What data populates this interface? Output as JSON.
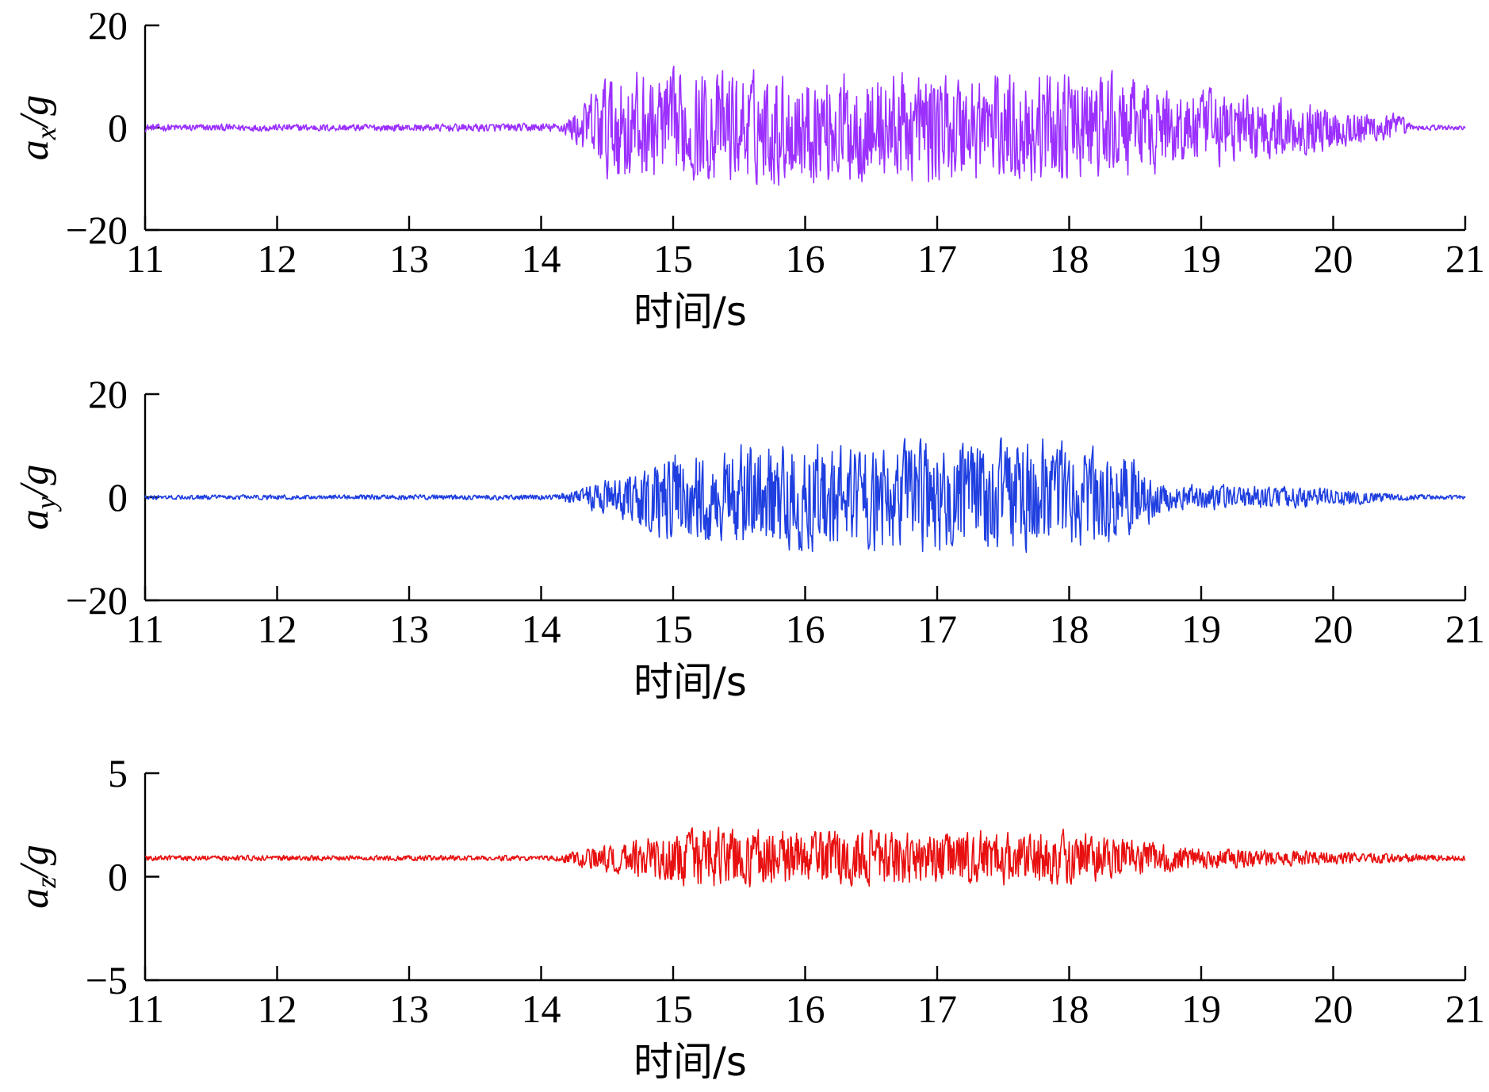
{
  "chart_data": [
    {
      "type": "line",
      "panel": "ax",
      "ylabel_main": "a",
      "ylabel_sub": "x",
      "ylabel_tail": "/g",
      "xlabel": "时间/s",
      "xlim": [
        11,
        21
      ],
      "ylim": [
        -20,
        20
      ],
      "xticks": [
        "11",
        "12",
        "13",
        "14",
        "15",
        "16",
        "17",
        "18",
        "19",
        "20",
        "21"
      ],
      "yticks": [
        "20",
        "0",
        "−20"
      ],
      "ytick_values": [
        20,
        0,
        -20
      ],
      "color": "#9b30ff",
      "series": [
        {
          "baseline": 0,
          "envelope": [
            [
              11,
              0.8
            ],
            [
              13,
              0.8
            ],
            [
              14.15,
              1.0
            ],
            [
              14.3,
              5
            ],
            [
              14.5,
              12.5
            ],
            [
              18.2,
              12.5
            ],
            [
              18.8,
              9
            ],
            [
              19.3,
              8
            ],
            [
              20,
              5
            ],
            [
              20.5,
              3
            ],
            [
              20.6,
              0.6
            ],
            [
              21,
              0.6
            ]
          ],
          "clip": [
            -12.5,
            12.5
          ],
          "sample_dt": 0.005
        }
      ]
    },
    {
      "type": "line",
      "panel": "ay",
      "ylabel_main": "a",
      "ylabel_sub": "y",
      "ylabel_tail": "/g",
      "xlabel": "时间/s",
      "xlim": [
        11,
        21
      ],
      "ylim": [
        -20,
        20
      ],
      "xticks": [
        "11",
        "12",
        "13",
        "14",
        "15",
        "16",
        "17",
        "18",
        "19",
        "20",
        "21"
      ],
      "yticks": [
        "20",
        "0",
        "−20"
      ],
      "ytick_values": [
        20,
        0,
        -20
      ],
      "color": "#1f3fe0",
      "series": [
        {
          "baseline": 0,
          "envelope": [
            [
              11,
              0.5
            ],
            [
              14.1,
              0.6
            ],
            [
              14.3,
              2
            ],
            [
              14.6,
              5
            ],
            [
              15,
              10
            ],
            [
              15.5,
              12
            ],
            [
              17.8,
              12.5
            ],
            [
              18.5,
              9
            ],
            [
              18.7,
              3
            ],
            [
              19.5,
              2.5
            ],
            [
              20,
              2
            ],
            [
              20.5,
              0.8
            ],
            [
              21,
              0.4
            ]
          ],
          "clip": [
            -12.5,
            12.5
          ],
          "sample_dt": 0.005
        }
      ]
    },
    {
      "type": "line",
      "panel": "az",
      "ylabel_main": "a",
      "ylabel_sub": "z",
      "ylabel_tail": "/g",
      "xlabel": "时间/s",
      "xlim": [
        11,
        21
      ],
      "ylim": [
        -5,
        5
      ],
      "xticks": [
        "11",
        "12",
        "13",
        "14",
        "15",
        "16",
        "17",
        "18",
        "19",
        "20",
        "21"
      ],
      "yticks": [
        "5",
        "0",
        "−5"
      ],
      "ytick_values": [
        5,
        0,
        -5
      ],
      "color": "#e81010",
      "series": [
        {
          "baseline": 0.9,
          "envelope": [
            [
              11,
              0.15
            ],
            [
              14.1,
              0.15
            ],
            [
              14.3,
              0.5
            ],
            [
              14.7,
              1.1
            ],
            [
              15.2,
              1.6
            ],
            [
              18,
              1.5
            ],
            [
              18.5,
              1.0
            ],
            [
              19,
              0.6
            ],
            [
              20,
              0.35
            ],
            [
              21,
              0.15
            ]
          ],
          "clip": [
            -0.6,
            2.8
          ],
          "sample_dt": 0.005
        }
      ]
    }
  ]
}
